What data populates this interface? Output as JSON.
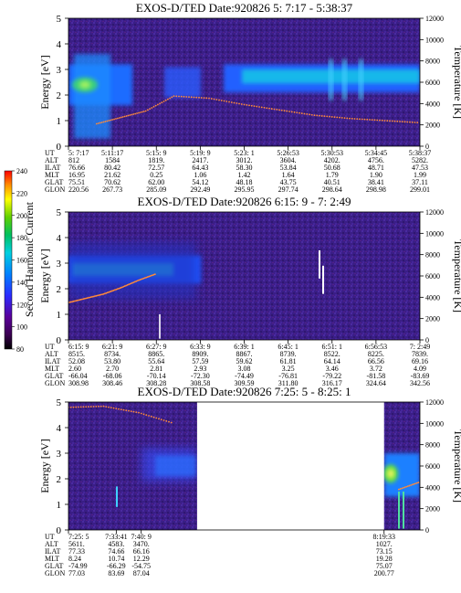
{
  "colorbar": {
    "label": "Second Harmonic Current",
    "ticks": [
      "80",
      "100",
      "120",
      "140",
      "160",
      "180",
      "200",
      "220",
      "240"
    ]
  },
  "row_labels": [
    "UT",
    "ALT",
    "ILAT",
    "MLT",
    "GLAT",
    "GLON"
  ],
  "chart_data": [
    {
      "type": "heatmap",
      "title": "EXOS-D/TED   Date:920826  5: 7:17 - 5:38:37",
      "ylabel": "Energy [eV]",
      "ylabel_right": "Temperature [K]",
      "ylim": [
        0,
        5
      ],
      "ylim_right": [
        0,
        12000
      ],
      "yticks": [
        "0",
        "1",
        "2",
        "3",
        "4",
        "5"
      ],
      "yticks_right": [
        "0",
        "2000",
        "4000",
        "6000",
        "8000",
        "10000",
        "12000"
      ],
      "columns": [
        {
          "UT": "5: 7:17",
          "ALT": "812",
          "ILAT": "76.66",
          "MLT": "16.95",
          "GLAT": "75.51",
          "GLON": "220.56"
        },
        {
          "UT": "5:11:17",
          "ALT": "1584",
          "ILAT": "80.42",
          "MLT": "21.62",
          "GLAT": "70.62",
          "GLON": "267.73"
        },
        {
          "UT": "5:15: 9",
          "ALT": "1819.",
          "ILAT": "72.57",
          "MLT": "0.25",
          "GLAT": "62.00",
          "GLON": "285.09"
        },
        {
          "UT": "5:19: 9",
          "ALT": "2417.",
          "ILAT": "64.43",
          "MLT": "1.06",
          "GLAT": "54.12",
          "GLON": "292.49"
        },
        {
          "UT": "5:23: 1",
          "ALT": "3012.",
          "ILAT": "58.30",
          "MLT": "1.42",
          "GLAT": "48.18",
          "GLON": "295.95"
        },
        {
          "UT": "5:26:53",
          "ALT": "3604.",
          "ILAT": "53.84",
          "MLT": "1.64",
          "GLAT": "43.75",
          "GLON": "297.74"
        },
        {
          "UT": "5:30:53",
          "ALT": "4202.",
          "ILAT": "50.68",
          "MLT": "1.79",
          "GLAT": "40.51",
          "GLON": "298.64"
        },
        {
          "UT": "5:34:45",
          "ALT": "4756.",
          "ILAT": "48.71",
          "MLT": "1.90",
          "GLAT": "38.41",
          "GLON": "298.98"
        },
        {
          "UT": "5:38:37",
          "ALT": "5282.",
          "ILAT": "47.53",
          "MLT": "1.99",
          "GLAT": "37.11",
          "GLON": "299.01"
        }
      ],
      "temperature_trace": {
        "x_fraction": [
          0.08,
          0.15,
          0.22,
          0.3,
          0.4,
          0.5,
          0.6,
          0.7,
          0.8,
          0.9,
          1.0
        ],
        "temperature_K": [
          2100,
          2700,
          3300,
          4700,
          4500,
          3900,
          3400,
          2900,
          2600,
          2400,
          2200
        ]
      }
    },
    {
      "type": "heatmap",
      "title": "EXOS-D/TED   Date:920826  6:15: 9 - 7: 2:49",
      "ylabel": "Energy [eV]",
      "ylabel_right": "Temperature [K]",
      "ylim": [
        0,
        5
      ],
      "ylim_right": [
        0,
        12000
      ],
      "yticks": [
        "0",
        "1",
        "2",
        "3",
        "4",
        "5"
      ],
      "yticks_right": [
        "0",
        "2000",
        "4000",
        "6000",
        "8000",
        "10000",
        "12000"
      ],
      "columns": [
        {
          "UT": "6:15: 9",
          "ALT": "8515.",
          "ILAT": "52.08",
          "MLT": "2.60",
          "GLAT": "-66.04",
          "GLON": "308.98"
        },
        {
          "UT": "6:21: 9",
          "ALT": "8734.",
          "ILAT": "53.80",
          "MLT": "2.70",
          "GLAT": "-68.06",
          "GLON": "308.46"
        },
        {
          "UT": "6:27: 9",
          "ALT": "8865.",
          "ILAT": "55.64",
          "MLT": "2.81",
          "GLAT": "-70.14",
          "GLON": "308.28"
        },
        {
          "UT": "6:33: 9",
          "ALT": "8909.",
          "ILAT": "57.59",
          "MLT": "2.93",
          "GLAT": "-72.30",
          "GLON": "308.58"
        },
        {
          "UT": "6:39: 1",
          "ALT": "8867.",
          "ILAT": "59.62",
          "MLT": "3.08",
          "GLAT": "-74.49",
          "GLON": "309.59"
        },
        {
          "UT": "6:45: 1",
          "ALT": "8739.",
          "ILAT": "61.81",
          "MLT": "3.25",
          "GLAT": "-76.81",
          "GLON": "311.80"
        },
        {
          "UT": "6:51: 1",
          "ALT": "8522.",
          "ILAT": "64.14",
          "MLT": "3.46",
          "GLAT": "-79.22",
          "GLON": "316.17"
        },
        {
          "UT": "6:56:53",
          "ALT": "8225.",
          "ILAT": "66.56",
          "MLT": "3.72",
          "GLAT": "-81.58",
          "GLON": "324.64"
        },
        {
          "UT": "7: 2:49",
          "ALT": "7839.",
          "ILAT": "69.16",
          "MLT": "4.09",
          "GLAT": "-83.69",
          "GLON": "342.56"
        }
      ],
      "temperature_trace": {
        "x_fraction": [
          0.0,
          0.05,
          0.1,
          0.15,
          0.2,
          0.25
        ],
        "temperature_K": [
          3500,
          3900,
          4300,
          4900,
          5600,
          6200
        ]
      }
    },
    {
      "type": "heatmap",
      "title": "EXOS-D/TED   Date:920826  7:25: 5 - 8:25: 1",
      "ylabel": "Energy [eV]",
      "ylabel_right": "Temperature [K]",
      "ylim": [
        0,
        5
      ],
      "ylim_right": [
        0,
        12000
      ],
      "yticks": [
        "0",
        "1",
        "2",
        "3",
        "4",
        "5"
      ],
      "yticks_right": [
        "0",
        "2000",
        "4000",
        "6000",
        "8000",
        "10000",
        "12000"
      ],
      "columns": [
        {
          "UT": "7:25: 5",
          "ALT": "5611.",
          "ILAT": "77.33",
          "MLT": "8.24",
          "GLAT": "-74.99",
          "GLON": "77.03"
        },
        {
          "UT": "7:33:41",
          "ALT": "4583.",
          "ILAT": "74.66",
          "MLT": "10.74",
          "GLAT": "-66.29",
          "GLON": "83.69"
        },
        {
          "UT": "7:40: 9",
          "ALT": "3470.",
          "ILAT": "66.16",
          "MLT": "12.29",
          "GLAT": "-54.75",
          "GLON": "87.04"
        },
        {
          "UT": "8:19:33",
          "ALT": "1027.",
          "ILAT": "73.15",
          "MLT": "19.28",
          "GLAT": "75.07",
          "GLON": "200.77"
        }
      ],
      "temperature_trace": {
        "x_fraction": [
          0.0,
          0.1,
          0.2,
          0.3,
          0.4,
          0.88,
          0.94,
          1.0
        ],
        "temperature_K": [
          11500,
          11600,
          11000,
          10000,
          9000,
          4200,
          3800,
          4500
        ]
      }
    }
  ]
}
